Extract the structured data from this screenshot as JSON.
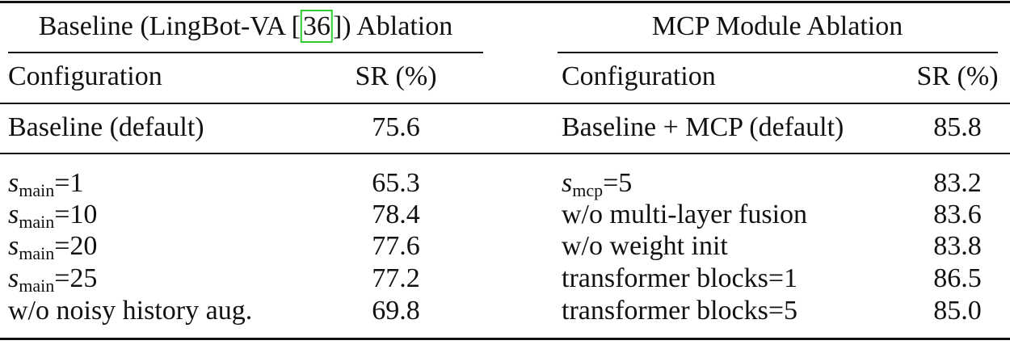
{
  "table": {
    "groups": [
      {
        "title": {
          "before": "Baseline (LingBot-VA [",
          "cite": "36",
          "after": "]) Ablation"
        },
        "header": [
          "Configuration",
          "SR (%)"
        ],
        "default_row": [
          "Baseline (default)",
          "75.6"
        ],
        "rows": [
          [
            {
              "var": "s",
              "sub": "main",
              "rest": "=1"
            },
            "65.3"
          ],
          [
            {
              "var": "s",
              "sub": "main",
              "rest": "=10"
            },
            "78.4"
          ],
          [
            {
              "var": "s",
              "sub": "main",
              "rest": "=20"
            },
            "77.6"
          ],
          [
            {
              "var": "s",
              "sub": "main",
              "rest": "=25"
            },
            "77.2"
          ],
          [
            "w/o noisy history aug.",
            "69.8"
          ]
        ]
      },
      {
        "title": {
          "before": "MCP Module Ablation"
        },
        "header": [
          "Configuration",
          "SR (%)"
        ],
        "default_row": [
          "Baseline + MCP (default)",
          "85.8"
        ],
        "rows": [
          [
            {
              "var": "s",
              "sub": "mcp",
              "rest": "=5"
            },
            "83.2"
          ],
          [
            "w/o multi-layer fusion",
            "83.6"
          ],
          [
            "w/o weight init",
            "83.8"
          ],
          [
            "transformer blocks=1",
            "86.5"
          ],
          [
            "transformer blocks=5",
            "85.0"
          ]
        ]
      }
    ]
  }
}
